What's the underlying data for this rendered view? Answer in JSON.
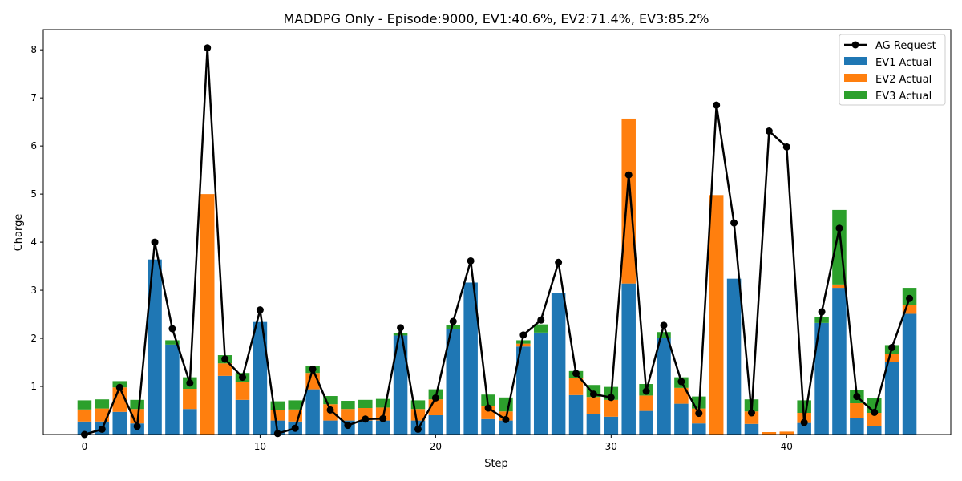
{
  "chart_data": {
    "type": "bar",
    "title": "MADDPG Only - Episode:9000, EV1:40.6%, EV2:71.4%, EV3:85.2%",
    "xlabel": "Step",
    "ylabel": "Charge",
    "xlim": [
      -2.35,
      49.35
    ],
    "ylim": [
      0,
      8.42
    ],
    "xticks": [
      0,
      10,
      20,
      30,
      40
    ],
    "yticks": [
      1,
      2,
      3,
      4,
      5,
      6,
      7,
      8
    ],
    "grid": false,
    "legend_position": "top-right",
    "stacked": true,
    "x": [
      0,
      1,
      2,
      3,
      4,
      5,
      6,
      7,
      8,
      9,
      10,
      11,
      12,
      13,
      14,
      15,
      16,
      17,
      18,
      19,
      20,
      21,
      22,
      23,
      24,
      25,
      26,
      27,
      28,
      29,
      30,
      31,
      32,
      33,
      34,
      35,
      36,
      37,
      38,
      39,
      40,
      41,
      42,
      43,
      44,
      45,
      46,
      47
    ],
    "series": [
      {
        "name": "EV1 Actual",
        "color": "#1f77b4",
        "values": [
          0.27,
          0.27,
          0.47,
          0.23,
          3.64,
          1.87,
          0.53,
          0.0,
          1.22,
          0.72,
          2.34,
          0.29,
          0.27,
          0.94,
          0.29,
          0.29,
          0.29,
          0.29,
          2.06,
          0.29,
          0.4,
          2.19,
          3.16,
          0.32,
          0.29,
          1.83,
          2.12,
          2.95,
          0.82,
          0.42,
          0.37,
          3.14,
          0.49,
          2.01,
          0.64,
          0.23,
          0.0,
          3.24,
          0.22,
          0.0,
          0.0,
          0.24,
          2.32,
          3.05,
          0.35,
          0.18,
          1.51,
          2.51
        ]
      },
      {
        "name": "EV2 Actual",
        "color": "#ff7f0e",
        "values": [
          0.25,
          0.27,
          0.51,
          0.3,
          0.0,
          0.0,
          0.42,
          5.0,
          0.26,
          0.37,
          0.0,
          0.22,
          0.25,
          0.34,
          0.34,
          0.24,
          0.26,
          0.27,
          0.0,
          0.24,
          0.33,
          0.0,
          0.0,
          0.28,
          0.19,
          0.06,
          0.0,
          0.0,
          0.35,
          0.36,
          0.35,
          3.43,
          0.32,
          0.0,
          0.33,
          0.31,
          4.98,
          0.0,
          0.26,
          0.05,
          0.06,
          0.21,
          0.0,
          0.07,
          0.3,
          0.27,
          0.16,
          0.18
        ]
      },
      {
        "name": "EV3 Actual",
        "color": "#2ca02c",
        "values": [
          0.19,
          0.19,
          0.13,
          0.19,
          0.0,
          0.09,
          0.24,
          0.0,
          0.17,
          0.19,
          0.0,
          0.18,
          0.19,
          0.14,
          0.17,
          0.17,
          0.17,
          0.18,
          0.05,
          0.18,
          0.21,
          0.09,
          0.0,
          0.23,
          0.29,
          0.07,
          0.17,
          0.0,
          0.15,
          0.25,
          0.27,
          0.0,
          0.24,
          0.12,
          0.22,
          0.25,
          0.0,
          0.0,
          0.25,
          0.0,
          0.0,
          0.26,
          0.13,
          1.55,
          0.27,
          0.3,
          0.19,
          0.36
        ]
      }
    ],
    "line": {
      "name": "AG Request",
      "color": "#000000",
      "values": [
        0.0,
        0.11,
        0.98,
        0.17,
        4.0,
        2.2,
        1.07,
        8.04,
        1.57,
        1.19,
        2.59,
        0.02,
        0.13,
        1.36,
        0.51,
        0.19,
        0.32,
        0.33,
        2.22,
        0.11,
        0.76,
        2.35,
        3.61,
        0.55,
        0.31,
        2.07,
        2.38,
        3.58,
        1.27,
        0.84,
        0.77,
        5.4,
        0.9,
        2.27,
        1.1,
        0.44,
        6.85,
        4.4,
        0.45,
        6.31,
        5.98,
        0.25,
        2.55,
        4.29,
        0.79,
        0.46,
        1.81,
        2.83
      ]
    }
  }
}
